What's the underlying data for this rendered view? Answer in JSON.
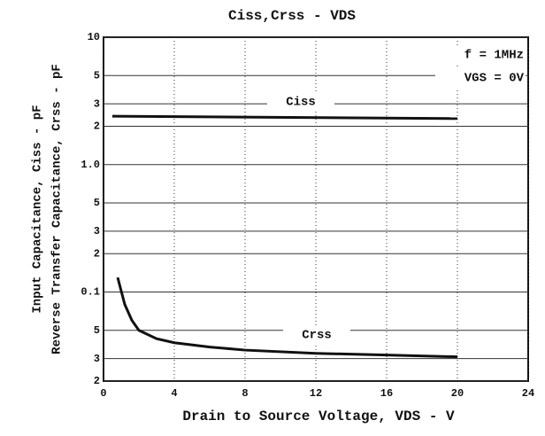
{
  "chart_data": {
    "type": "line",
    "title": "Ciss,Crss - VDS",
    "xlabel": "Drain to Source Voltage, VDS - V",
    "ylabel": [
      "Input Capacitance, Ciss - pF",
      "Reverse Transfer Capacitance, Crss - pF"
    ],
    "annotations": [
      "f = 1MHz",
      "VGS = 0V"
    ],
    "series": [
      {
        "name": "Ciss",
        "color": "#111111",
        "x": [
          0.5,
          20
        ],
        "values": [
          2.4,
          2.3
        ]
      },
      {
        "name": "Crss",
        "color": "#111111",
        "x": [
          0.8,
          1.2,
          1.6,
          2,
          3,
          4,
          6,
          8,
          12,
          16,
          20
        ],
        "values": [
          0.13,
          0.08,
          0.06,
          0.05,
          0.043,
          0.04,
          0.037,
          0.035,
          0.033,
          0.032,
          0.031
        ]
      }
    ],
    "xlim": [
      0,
      24
    ],
    "xticks": [
      0,
      4,
      8,
      12,
      16,
      20,
      24
    ],
    "ylim": [
      0.02,
      10
    ],
    "ylog": true,
    "yticks": [
      10,
      5,
      3,
      2,
      {
        "value": 1,
        "label": "1.0"
      },
      {
        "value": 0.5,
        "label": "5"
      },
      {
        "value": 0.3,
        "label": "3"
      },
      {
        "value": 0.2,
        "label": "2"
      },
      0.1,
      {
        "value": 0.05,
        "label": "5"
      },
      {
        "value": 0.03,
        "label": "3"
      },
      {
        "value": 0.02,
        "label": "2"
      }
    ],
    "grid": true
  }
}
